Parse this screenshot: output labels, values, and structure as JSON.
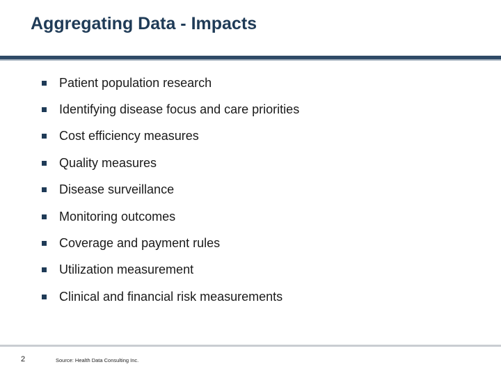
{
  "slide": {
    "title": "Aggregating Data - Impacts",
    "bullets": [
      "Patient population research",
      "Identifying disease focus and care priorities",
      "Cost efficiency measures",
      "Quality measures",
      "Disease surveillance",
      "Monitoring outcomes",
      "Coverage and payment rules",
      "Utilization measurement",
      "Clinical and financial risk measurements"
    ],
    "bullet_marker_icon": "square-bullet-icon",
    "page_number": "2",
    "source": "Source: Health Data Consulting Inc.",
    "colors": {
      "title": "#1F3B57",
      "header_rule": "#2E4A66",
      "footer_rule": "#C9CDD2"
    }
  }
}
